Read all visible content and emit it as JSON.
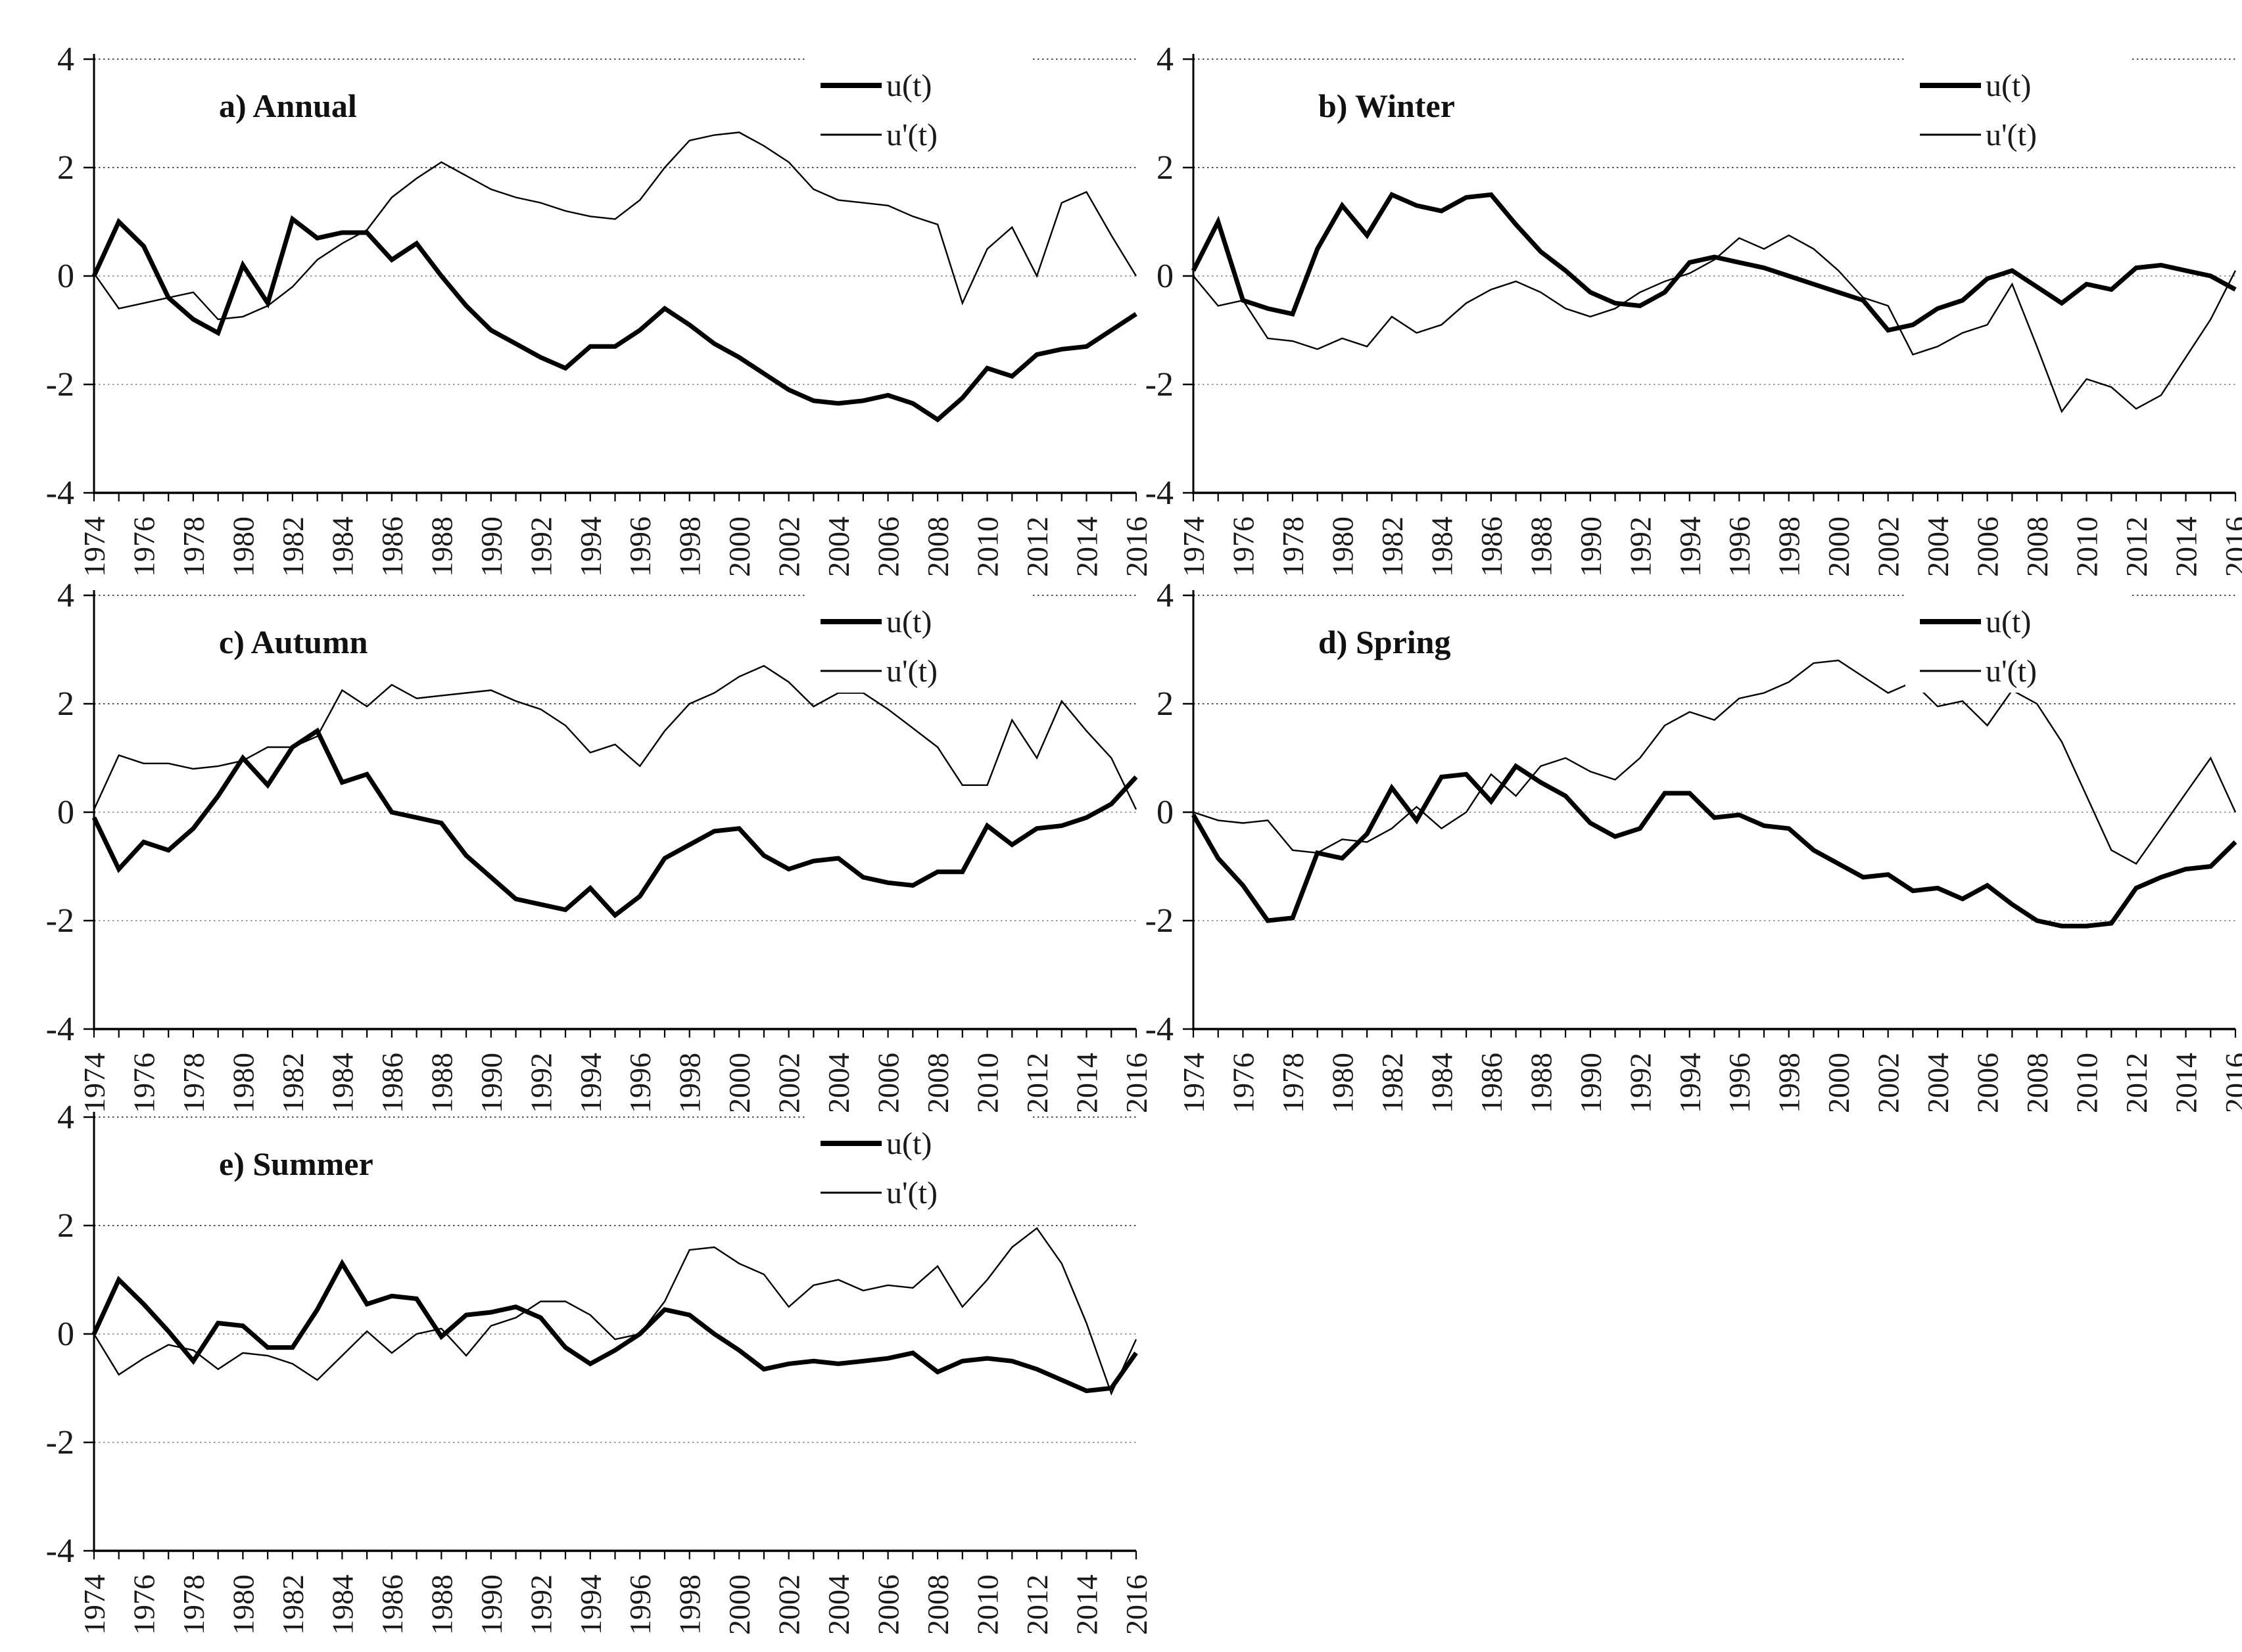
{
  "figure": {
    "background_color": "#ffffff",
    "line_color": "#000000",
    "grid_color_dark": "#3a3a3a",
    "grid_color_light": "#8f8f8f"
  },
  "chart_data": {
    "type": "line",
    "x_start": 1974,
    "x_end": 2016,
    "x_tick_labels": [
      "1974",
      "1976",
      "1978",
      "1980",
      "1982",
      "1984",
      "1986",
      "1988",
      "1990",
      "1992",
      "1994",
      "1996",
      "1998",
      "2000",
      "2002",
      "2004",
      "2006",
      "2008",
      "2010",
      "2012",
      "2014",
      "2016"
    ],
    "y_tick_labels": [
      "4",
      "2",
      "0",
      "-2",
      "-4"
    ],
    "y_ticks": [
      4,
      2,
      0,
      -2,
      -4
    ],
    "grid_values": [
      4,
      2,
      0,
      -2
    ],
    "ylim": [
      -4,
      4
    ],
    "grid": true,
    "legend_position": "top-right-inside",
    "legend": [
      {
        "name": "u(t)",
        "style": "thick"
      },
      {
        "name": "u'(t)",
        "style": "thin"
      }
    ],
    "charts": [
      {
        "id": "annual",
        "title": "a) Annual",
        "series": {
          "u": [
            0,
            1,
            0.55,
            -0.4,
            -0.8,
            -1.05,
            0.2,
            -0.5,
            1.05,
            0.7,
            0.8,
            0.8,
            0.3,
            0.6,
            0,
            -0.55,
            -1,
            -1.25,
            -1.5,
            -1.7,
            -1.3,
            -1.3,
            -1,
            -0.6,
            -0.9,
            -1.25,
            -1.5,
            -1.8,
            -2.1,
            -2.3,
            -2.35,
            -2.3,
            -2.2,
            -2.35,
            -2.65,
            -2.25,
            -1.7,
            -1.85,
            -1.45,
            -1.35,
            -1.3,
            -1,
            -0.7
          ],
          "u_prime": [
            0.05,
            -0.6,
            -0.5,
            -0.4,
            -0.3,
            -0.8,
            -0.75,
            -0.55,
            -0.2,
            0.3,
            0.6,
            0.85,
            1.45,
            1.8,
            2.1,
            1.85,
            1.6,
            1.45,
            1.35,
            1.2,
            1.1,
            1.05,
            1.4,
            2,
            2.5,
            2.6,
            2.65,
            2.4,
            2.1,
            1.6,
            1.4,
            1.35,
            1.3,
            1.1,
            0.95,
            -0.5,
            0.5,
            0.9,
            0,
            1.35,
            1.55,
            0.75,
            0
          ]
        }
      },
      {
        "id": "winter",
        "title": "b) Winter",
        "series": {
          "u": [
            0.1,
            1,
            -0.45,
            -0.6,
            -0.7,
            0.5,
            1.3,
            0.75,
            1.5,
            1.3,
            1.2,
            1.45,
            1.5,
            0.95,
            0.45,
            0.1,
            -0.3,
            -0.5,
            -0.55,
            -0.3,
            0.25,
            0.35,
            0.25,
            0.15,
            0,
            -0.15,
            -0.3,
            -0.45,
            -1,
            -0.9,
            -0.6,
            -0.45,
            -0.05,
            0.1,
            -0.2,
            -0.5,
            -0.15,
            -0.25,
            0.15,
            0.2,
            0.1,
            0,
            -0.25
          ],
          "u_prime": [
            0,
            -0.55,
            -0.45,
            -1.15,
            -1.2,
            -1.35,
            -1.15,
            -1.3,
            -0.75,
            -1.05,
            -0.9,
            -0.5,
            -0.25,
            -0.1,
            -0.3,
            -0.6,
            -0.75,
            -0.6,
            -0.3,
            -0.1,
            0.05,
            0.3,
            0.7,
            0.5,
            0.75,
            0.5,
            0.1,
            -0.4,
            -0.55,
            -1.45,
            -1.3,
            -1.05,
            -0.9,
            -0.15,
            -1.3,
            -2.5,
            -1.9,
            -2.05,
            -2.45,
            -2.2,
            -1.5,
            -0.8,
            0.1
          ]
        }
      },
      {
        "id": "autumn",
        "title": "c) Autumn",
        "series": {
          "u": [
            -0.1,
            -1.05,
            -0.55,
            -0.7,
            -0.3,
            0.3,
            1,
            0.5,
            1.2,
            1.5,
            0.55,
            0.7,
            0,
            -0.1,
            -0.2,
            -0.8,
            -1.2,
            -1.6,
            -1.7,
            -1.8,
            -1.4,
            -1.9,
            -1.55,
            -0.85,
            -0.6,
            -0.35,
            -0.3,
            -0.8,
            -1.05,
            -0.9,
            -0.85,
            -1.2,
            -1.3,
            -1.35,
            -1.1,
            -1.1,
            -0.25,
            -0.6,
            -0.3,
            -0.25,
            -0.1,
            0.15,
            0.65
          ],
          "u_prime": [
            0.05,
            1.05,
            0.9,
            0.9,
            0.8,
            0.85,
            0.95,
            1.2,
            1.2,
            1.4,
            2.25,
            1.95,
            2.35,
            2.1,
            2.15,
            2.2,
            2.25,
            2.05,
            1.9,
            1.6,
            1.1,
            1.25,
            0.85,
            1.5,
            2,
            2.2,
            2.5,
            2.7,
            2.4,
            1.95,
            2.2,
            2.2,
            1.9,
            1.55,
            1.2,
            0.5,
            0.5,
            1.7,
            1,
            2.05,
            1.5,
            1,
            0.05
          ]
        }
      },
      {
        "id": "spring",
        "title": "d) Spring",
        "series": {
          "u": [
            -0.05,
            -0.85,
            -1.35,
            -2,
            -1.95,
            -0.75,
            -0.85,
            -0.4,
            0.45,
            -0.15,
            0.65,
            0.7,
            0.2,
            0.85,
            0.55,
            0.3,
            -0.2,
            -0.45,
            -0.3,
            0.35,
            0.35,
            -0.1,
            -0.05,
            -0.25,
            -0.3,
            -0.7,
            -0.95,
            -1.2,
            -1.15,
            -1.45,
            -1.4,
            -1.6,
            -1.35,
            -1.7,
            -2,
            -2.1,
            -2.1,
            -2.05,
            -1.4,
            -1.2,
            -1.05,
            -1,
            -0.55
          ],
          "u_prime": [
            0,
            -0.15,
            -0.2,
            -0.15,
            -0.7,
            -0.75,
            -0.5,
            -0.55,
            -0.3,
            0.1,
            -0.3,
            0,
            0.7,
            0.3,
            0.85,
            1,
            0.75,
            0.6,
            1,
            1.6,
            1.85,
            1.7,
            2.1,
            2.2,
            2.4,
            2.75,
            2.8,
            2.5,
            2.2,
            2.4,
            1.95,
            2.05,
            1.6,
            2.25,
            2,
            1.3,
            0.3,
            -0.7,
            -0.95,
            -0.3,
            0.35,
            1,
            0
          ]
        }
      },
      {
        "id": "summer",
        "title": "e) Summer",
        "series": {
          "u": [
            0,
            1,
            0.55,
            0.05,
            -0.5,
            0.2,
            0.15,
            -0.25,
            -0.25,
            0.45,
            1.3,
            0.55,
            0.7,
            0.65,
            -0.05,
            0.35,
            0.4,
            0.5,
            0.3,
            -0.25,
            -0.55,
            -0.3,
            0,
            0.45,
            0.35,
            0,
            -0.3,
            -0.65,
            -0.55,
            -0.5,
            -0.55,
            -0.5,
            -0.45,
            -0.35,
            -0.7,
            -0.5,
            -0.45,
            -0.5,
            -0.65,
            -0.85,
            -1.05,
            -1,
            -0.35
          ],
          "u_prime": [
            0,
            -0.75,
            -0.45,
            -0.2,
            -0.3,
            -0.65,
            -0.35,
            -0.4,
            -0.55,
            -0.85,
            -0.4,
            0.05,
            -0.35,
            0,
            0.1,
            -0.4,
            0.15,
            0.3,
            0.6,
            0.6,
            0.35,
            -0.1,
            0,
            0.6,
            1.55,
            1.6,
            1.3,
            1.1,
            0.5,
            0.9,
            1,
            0.8,
            0.9,
            0.85,
            1.25,
            0.5,
            1,
            1.6,
            1.95,
            1.3,
            0.2,
            -1.1,
            -0.1
          ]
        }
      }
    ]
  }
}
